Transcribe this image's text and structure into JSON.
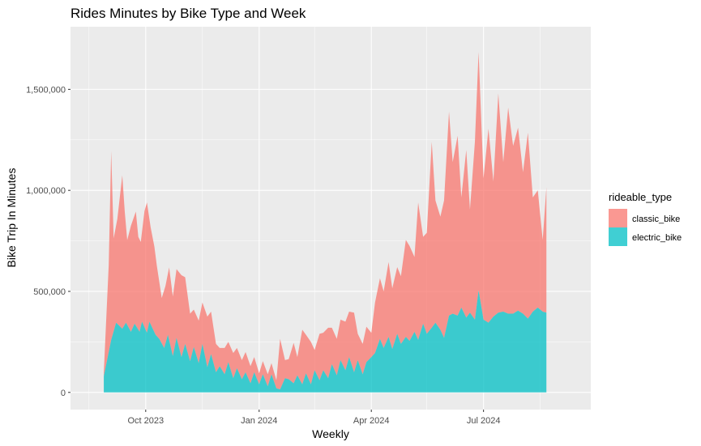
{
  "chart_data": {
    "type": "area",
    "stacked": true,
    "title": "Rides Minutes by Bike Type and Week",
    "xlabel": "Weekly",
    "ylabel": "Bike Trip In Minutes",
    "x_tick_labels": [
      "Oct 2023",
      "Jan 2024",
      "Apr 2024",
      "Jul 2024"
    ],
    "x_tick_dates": [
      "2023-10-01",
      "2024-01-01",
      "2024-04-01",
      "2024-07-01"
    ],
    "y_tick_labels": [
      "0",
      "500,000",
      "1,000,000",
      "1,500,000"
    ],
    "y_tick_values": [
      0,
      500000,
      1000000,
      1500000
    ],
    "xlim": [
      "2023-08-01",
      "2024-09-26"
    ],
    "ylim": [
      -85000,
      1810000
    ],
    "grid": true,
    "legend": {
      "title": "rideable_type",
      "position": "right",
      "entries": [
        {
          "name": "classic_bike",
          "color": "#F8766D"
        },
        {
          "name": "electric_bike",
          "color": "#00BFC4"
        }
      ]
    },
    "panel_background": "#EBEBEB",
    "area_opacity": 0.75,
    "series": [
      {
        "name": "electric_bike",
        "points": [
          [
            "2023-08-28",
            80000
          ],
          [
            "2023-09-03",
            260000
          ],
          [
            "2023-09-07",
            345000
          ],
          [
            "2023-09-12",
            315000
          ],
          [
            "2023-09-15",
            345000
          ],
          [
            "2023-09-19",
            300000
          ],
          [
            "2023-09-22",
            340000
          ],
          [
            "2023-09-26",
            300000
          ],
          [
            "2023-09-28",
            350000
          ],
          [
            "2023-10-02",
            295000
          ],
          [
            "2023-10-04",
            350000
          ],
          [
            "2023-10-09",
            285000
          ],
          [
            "2023-10-12",
            265000
          ],
          [
            "2023-10-16",
            220000
          ],
          [
            "2023-10-19",
            285000
          ],
          [
            "2023-10-23",
            180000
          ],
          [
            "2023-10-26",
            270000
          ],
          [
            "2023-10-30",
            175000
          ],
          [
            "2023-11-02",
            240000
          ],
          [
            "2023-11-06",
            155000
          ],
          [
            "2023-11-09",
            225000
          ],
          [
            "2023-11-13",
            145000
          ],
          [
            "2023-11-16",
            240000
          ],
          [
            "2023-11-20",
            125000
          ],
          [
            "2023-11-23",
            190000
          ],
          [
            "2023-11-27",
            100000
          ],
          [
            "2023-11-30",
            130000
          ],
          [
            "2023-12-04",
            90000
          ],
          [
            "2023-12-07",
            150000
          ],
          [
            "2023-12-11",
            70000
          ],
          [
            "2023-12-14",
            120000
          ],
          [
            "2023-12-18",
            65000
          ],
          [
            "2023-12-21",
            100000
          ],
          [
            "2023-12-25",
            45000
          ],
          [
            "2023-12-28",
            100000
          ],
          [
            "2024-01-01",
            40000
          ],
          [
            "2024-01-04",
            90000
          ],
          [
            "2024-01-08",
            30000
          ],
          [
            "2024-01-11",
            90000
          ],
          [
            "2024-01-15",
            20000
          ],
          [
            "2024-01-18",
            15000
          ],
          [
            "2024-01-22",
            70000
          ],
          [
            "2024-01-25",
            65000
          ],
          [
            "2024-01-29",
            45000
          ],
          [
            "2024-02-01",
            85000
          ],
          [
            "2024-02-05",
            40000
          ],
          [
            "2024-02-08",
            95000
          ],
          [
            "2024-02-12",
            40000
          ],
          [
            "2024-02-15",
            110000
          ],
          [
            "2024-02-19",
            60000
          ],
          [
            "2024-02-22",
            110000
          ],
          [
            "2024-02-26",
            70000
          ],
          [
            "2024-02-29",
            140000
          ],
          [
            "2024-03-04",
            85000
          ],
          [
            "2024-03-07",
            160000
          ],
          [
            "2024-03-11",
            110000
          ],
          [
            "2024-03-14",
            175000
          ],
          [
            "2024-03-18",
            100000
          ],
          [
            "2024-03-21",
            160000
          ],
          [
            "2024-03-25",
            90000
          ],
          [
            "2024-03-28",
            150000
          ],
          [
            "2024-04-01",
            175000
          ],
          [
            "2024-04-04",
            195000
          ],
          [
            "2024-04-08",
            265000
          ],
          [
            "2024-04-11",
            220000
          ],
          [
            "2024-04-15",
            275000
          ],
          [
            "2024-04-18",
            215000
          ],
          [
            "2024-04-22",
            290000
          ],
          [
            "2024-04-25",
            240000
          ],
          [
            "2024-04-29",
            275000
          ],
          [
            "2024-05-02",
            255000
          ],
          [
            "2024-05-06",
            300000
          ],
          [
            "2024-05-09",
            260000
          ],
          [
            "2024-05-13",
            340000
          ],
          [
            "2024-05-16",
            290000
          ],
          [
            "2024-05-20",
            320000
          ],
          [
            "2024-05-23",
            345000
          ],
          [
            "2024-05-27",
            310000
          ],
          [
            "2024-05-30",
            270000
          ],
          [
            "2024-06-03",
            380000
          ],
          [
            "2024-06-06",
            390000
          ],
          [
            "2024-06-10",
            380000
          ],
          [
            "2024-06-13",
            420000
          ],
          [
            "2024-06-17",
            370000
          ],
          [
            "2024-06-20",
            395000
          ],
          [
            "2024-06-24",
            360000
          ],
          [
            "2024-06-27",
            505000
          ],
          [
            "2024-07-01",
            360000
          ],
          [
            "2024-07-05",
            345000
          ],
          [
            "2024-07-09",
            375000
          ],
          [
            "2024-07-13",
            395000
          ],
          [
            "2024-07-17",
            400000
          ],
          [
            "2024-07-21",
            390000
          ],
          [
            "2024-07-25",
            390000
          ],
          [
            "2024-07-29",
            405000
          ],
          [
            "2024-08-02",
            390000
          ],
          [
            "2024-08-06",
            365000
          ],
          [
            "2024-08-10",
            400000
          ],
          [
            "2024-08-14",
            420000
          ],
          [
            "2024-08-18",
            400000
          ],
          [
            "2024-08-21",
            395000
          ]
        ]
      },
      {
        "name": "classic_bike",
        "points": [
          [
            "2023-08-28",
            20000
          ],
          [
            "2023-09-01",
            430000
          ],
          [
            "2023-09-03",
            935000
          ],
          [
            "2023-09-05",
            460000
          ],
          [
            "2023-09-08",
            520000
          ],
          [
            "2023-09-12",
            760000
          ],
          [
            "2023-09-14",
            560000
          ],
          [
            "2023-09-16",
            420000
          ],
          [
            "2023-09-19",
            525000
          ],
          [
            "2023-09-23",
            565000
          ],
          [
            "2023-09-25",
            460000
          ],
          [
            "2023-09-27",
            420000
          ],
          [
            "2023-09-30",
            575000
          ],
          [
            "2023-10-02",
            645000
          ],
          [
            "2023-10-05",
            480000
          ],
          [
            "2023-10-08",
            425000
          ],
          [
            "2023-10-10",
            350000
          ],
          [
            "2023-10-14",
            225000
          ],
          [
            "2023-10-17",
            285000
          ],
          [
            "2023-10-20",
            360000
          ],
          [
            "2023-10-23",
            295000
          ],
          [
            "2023-10-26",
            340000
          ],
          [
            "2023-10-30",
            405000
          ],
          [
            "2023-11-02",
            330000
          ],
          [
            "2023-11-06",
            235000
          ],
          [
            "2023-11-09",
            185000
          ],
          [
            "2023-11-13",
            210000
          ],
          [
            "2023-11-16",
            205000
          ],
          [
            "2023-11-20",
            250000
          ],
          [
            "2023-11-23",
            210000
          ],
          [
            "2023-11-27",
            140000
          ],
          [
            "2023-11-30",
            90000
          ],
          [
            "2023-12-04",
            130000
          ],
          [
            "2023-12-07",
            100000
          ],
          [
            "2023-12-11",
            125000
          ],
          [
            "2023-12-14",
            100000
          ],
          [
            "2023-12-18",
            95000
          ],
          [
            "2023-12-21",
            100000
          ],
          [
            "2023-12-25",
            85000
          ],
          [
            "2023-12-28",
            75000
          ],
          [
            "2024-01-01",
            55000
          ],
          [
            "2024-01-04",
            65000
          ],
          [
            "2024-01-08",
            60000
          ],
          [
            "2024-01-11",
            55000
          ],
          [
            "2024-01-15",
            40000
          ],
          [
            "2024-01-18",
            250000
          ],
          [
            "2024-01-22",
            90000
          ],
          [
            "2024-01-25",
            100000
          ],
          [
            "2024-01-29",
            200000
          ],
          [
            "2024-02-01",
            90000
          ],
          [
            "2024-02-05",
            270000
          ],
          [
            "2024-02-08",
            190000
          ],
          [
            "2024-02-12",
            210000
          ],
          [
            "2024-02-15",
            100000
          ],
          [
            "2024-02-19",
            230000
          ],
          [
            "2024-02-22",
            185000
          ],
          [
            "2024-02-26",
            250000
          ],
          [
            "2024-02-29",
            180000
          ],
          [
            "2024-03-04",
            180000
          ],
          [
            "2024-03-07",
            200000
          ],
          [
            "2024-03-11",
            240000
          ],
          [
            "2024-03-14",
            225000
          ],
          [
            "2024-03-18",
            295000
          ],
          [
            "2024-03-21",
            130000
          ],
          [
            "2024-03-25",
            150000
          ],
          [
            "2024-03-28",
            175000
          ],
          [
            "2024-04-01",
            120000
          ],
          [
            "2024-04-04",
            250000
          ],
          [
            "2024-04-08",
            300000
          ],
          [
            "2024-04-11",
            280000
          ],
          [
            "2024-04-15",
            370000
          ],
          [
            "2024-04-18",
            300000
          ],
          [
            "2024-04-22",
            330000
          ],
          [
            "2024-04-25",
            335000
          ],
          [
            "2024-04-29",
            480000
          ],
          [
            "2024-05-02",
            470000
          ],
          [
            "2024-05-06",
            370000
          ],
          [
            "2024-05-09",
            680000
          ],
          [
            "2024-05-13",
            430000
          ],
          [
            "2024-05-16",
            500000
          ],
          [
            "2024-05-20",
            920000
          ],
          [
            "2024-05-23",
            605000
          ],
          [
            "2024-05-27",
            560000
          ],
          [
            "2024-05-30",
            680000
          ],
          [
            "2024-06-03",
            1010000
          ],
          [
            "2024-06-06",
            750000
          ],
          [
            "2024-06-10",
            890000
          ],
          [
            "2024-06-13",
            545000
          ],
          [
            "2024-06-17",
            830000
          ],
          [
            "2024-06-20",
            510000
          ],
          [
            "2024-06-24",
            880000
          ],
          [
            "2024-06-27",
            1180000
          ],
          [
            "2024-07-01",
            700000
          ],
          [
            "2024-07-05",
            960000
          ],
          [
            "2024-07-09",
            670000
          ],
          [
            "2024-07-13",
            1085000
          ],
          [
            "2024-07-17",
            740000
          ],
          [
            "2024-07-21",
            1020000
          ],
          [
            "2024-07-25",
            830000
          ],
          [
            "2024-07-29",
            905000
          ],
          [
            "2024-08-02",
            700000
          ],
          [
            "2024-08-06",
            920000
          ],
          [
            "2024-08-10",
            565000
          ],
          [
            "2024-08-14",
            580000
          ],
          [
            "2024-08-18",
            355000
          ],
          [
            "2024-08-21",
            620000
          ]
        ]
      }
    ]
  }
}
